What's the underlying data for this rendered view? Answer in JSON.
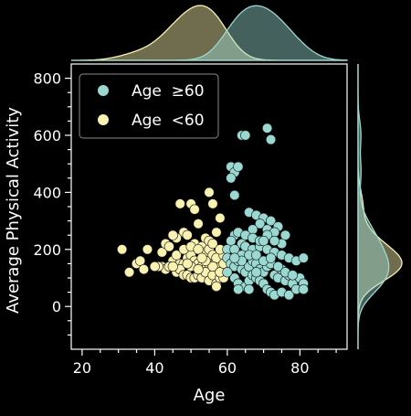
{
  "chart_data": {
    "type": "scatter",
    "title": "",
    "xlabel": "Age",
    "ylabel": "Average Physical Activity",
    "xlim": [
      17,
      93
    ],
    "ylim": [
      -150,
      850
    ],
    "xticks": [
      20,
      40,
      60,
      80
    ],
    "yticks": [
      0,
      200,
      400,
      600,
      800
    ],
    "grid": false,
    "legend_position": "top-left",
    "marginals": "kde",
    "series": [
      {
        "name": "Age  ≥60",
        "color": "#9ad8d1",
        "points": [
          [
            61,
            490
          ],
          [
            62,
            470
          ],
          [
            61,
            450
          ],
          [
            63,
            490
          ],
          [
            62,
            390
          ],
          [
            64,
            600
          ],
          [
            65,
            600
          ],
          [
            71,
            625
          ],
          [
            72,
            585
          ],
          [
            66,
            330
          ],
          [
            68,
            320
          ],
          [
            70,
            310
          ],
          [
            72,
            300
          ],
          [
            74,
            280
          ],
          [
            76,
            250
          ],
          [
            69,
            290
          ],
          [
            67,
            270
          ],
          [
            71,
            270
          ],
          [
            73,
            260
          ],
          [
            75,
            220
          ],
          [
            62,
            250
          ],
          [
            63,
            260
          ],
          [
            61,
            230
          ],
          [
            64,
            220
          ],
          [
            60,
            200
          ],
          [
            62,
            200
          ],
          [
            65,
            210
          ],
          [
            67,
            200
          ],
          [
            69,
            210
          ],
          [
            71,
            200
          ],
          [
            73,
            190
          ],
          [
            75,
            180
          ],
          [
            77,
            170
          ],
          [
            79,
            160
          ],
          [
            81,
            170
          ],
          [
            60,
            170
          ],
          [
            61,
            150
          ],
          [
            62,
            140
          ],
          [
            63,
            160
          ],
          [
            64,
            130
          ],
          [
            65,
            120
          ],
          [
            66,
            140
          ],
          [
            67,
            160
          ],
          [
            68,
            150
          ],
          [
            69,
            130
          ],
          [
            70,
            120
          ],
          [
            71,
            140
          ],
          [
            72,
            150
          ],
          [
            73,
            110
          ],
          [
            74,
            100
          ],
          [
            75,
            130
          ],
          [
            76,
            90
          ],
          [
            77,
            110
          ],
          [
            78,
            80
          ],
          [
            80,
            100
          ],
          [
            81,
            80
          ],
          [
            62,
            100
          ],
          [
            63,
            80
          ],
          [
            65,
            70
          ],
          [
            66,
            90
          ],
          [
            67,
            110
          ],
          [
            68,
            100
          ],
          [
            69,
            90
          ],
          [
            70,
            80
          ],
          [
            71,
            60
          ],
          [
            72,
            50
          ],
          [
            73,
            40
          ],
          [
            75,
            50
          ],
          [
            77,
            40
          ],
          [
            79,
            60
          ],
          [
            81,
            60
          ],
          [
            63,
            60
          ],
          [
            66,
            60
          ],
          [
            60,
            120
          ],
          [
            64,
            180
          ],
          [
            66,
            180
          ],
          [
            68,
            180
          ],
          [
            70,
            160
          ],
          [
            72,
            170
          ],
          [
            74,
            140
          ],
          [
            76,
            120
          ],
          [
            78,
            110
          ],
          [
            65,
            250
          ],
          [
            67,
            240
          ],
          [
            69,
            230
          ],
          [
            71,
            250
          ],
          [
            73,
            230
          ],
          [
            70,
            230
          ],
          [
            64,
            160
          ],
          [
            68,
            120
          ],
          [
            62,
            170
          ]
        ]
      },
      {
        "name": "Age  <60",
        "color": "#f8f1b0",
        "points": [
          [
            31,
            200
          ],
          [
            33,
            120
          ],
          [
            35,
            150
          ],
          [
            36,
            160
          ],
          [
            37,
            130
          ],
          [
            38,
            200
          ],
          [
            42,
            190
          ],
          [
            43,
            220
          ],
          [
            44,
            210
          ],
          [
            45,
            160
          ],
          [
            46,
            140
          ],
          [
            47,
            150
          ],
          [
            48,
            150
          ],
          [
            49,
            170
          ],
          [
            50,
            180
          ],
          [
            51,
            160
          ],
          [
            52,
            150
          ],
          [
            53,
            140
          ],
          [
            54,
            130
          ],
          [
            55,
            150
          ],
          [
            56,
            170
          ],
          [
            57,
            160
          ],
          [
            58,
            140
          ],
          [
            59,
            170
          ],
          [
            48,
            260
          ],
          [
            49,
            250
          ],
          [
            51,
            220
          ],
          [
            53,
            210
          ],
          [
            54,
            190
          ],
          [
            55,
            200
          ],
          [
            56,
            180
          ],
          [
            57,
            170
          ],
          [
            59,
            180
          ],
          [
            50,
            360
          ],
          [
            52,
            290
          ],
          [
            54,
            240
          ],
          [
            55,
            230
          ],
          [
            56,
            220
          ],
          [
            57,
            260
          ],
          [
            58,
            200
          ],
          [
            47,
            360
          ],
          [
            51,
            340
          ],
          [
            55,
            400
          ],
          [
            56,
            360
          ],
          [
            58,
            310
          ],
          [
            42,
            140
          ],
          [
            43,
            130
          ],
          [
            44,
            140
          ],
          [
            46,
            120
          ],
          [
            47,
            130
          ],
          [
            48,
            110
          ],
          [
            49,
            110
          ],
          [
            50,
            100
          ],
          [
            51,
            100
          ],
          [
            52,
            110
          ],
          [
            53,
            100
          ],
          [
            54,
            120
          ],
          [
            55,
            90
          ],
          [
            56,
            110
          ],
          [
            57,
            80
          ],
          [
            58,
            100
          ],
          [
            59,
            100
          ],
          [
            57,
            70
          ],
          [
            46,
            180
          ],
          [
            48,
            200
          ],
          [
            50,
            210
          ],
          [
            52,
            200
          ],
          [
            46,
            240
          ],
          [
            45,
            250
          ],
          [
            50,
            140
          ],
          [
            52,
            130
          ],
          [
            49,
            150
          ],
          [
            56,
            140
          ],
          [
            58,
            120
          ],
          [
            59,
            150
          ],
          [
            54,
            160
          ],
          [
            53,
            170
          ],
          [
            45,
            140
          ],
          [
            41,
            140
          ],
          [
            40,
            140
          ]
        ]
      }
    ]
  }
}
